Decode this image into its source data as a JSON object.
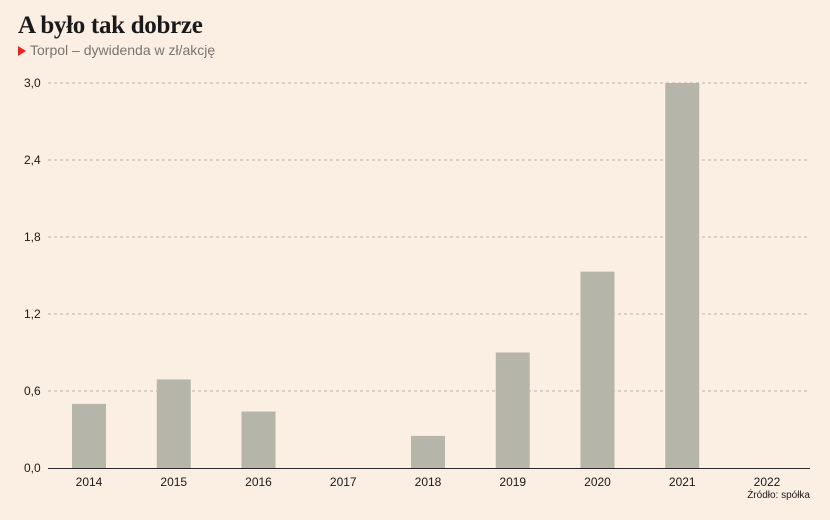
{
  "chart_data": {
    "type": "bar",
    "title": "A było tak dobrze",
    "subtitle": "Torpol – dywidenda w zł/akcję",
    "source": "Źródło: spółka",
    "categories": [
      "2014",
      "2015",
      "2016",
      "2017",
      "2018",
      "2019",
      "2020",
      "2021",
      "2022"
    ],
    "values": [
      0.5,
      0.69,
      0.44,
      0,
      0.25,
      0.9,
      1.53,
      3.0,
      0
    ],
    "ylim": [
      0,
      3.0
    ],
    "yticks": [
      "0,0",
      "0,6",
      "1,2",
      "1,8",
      "2,4",
      "3,0"
    ],
    "ytick_values": [
      0,
      0.6,
      1.2,
      1.8,
      2.4,
      3.0
    ],
    "grid": true,
    "colors": {
      "bar": "#b6b5a9",
      "background": "#fbeee2",
      "accent": "#e3261f"
    }
  }
}
